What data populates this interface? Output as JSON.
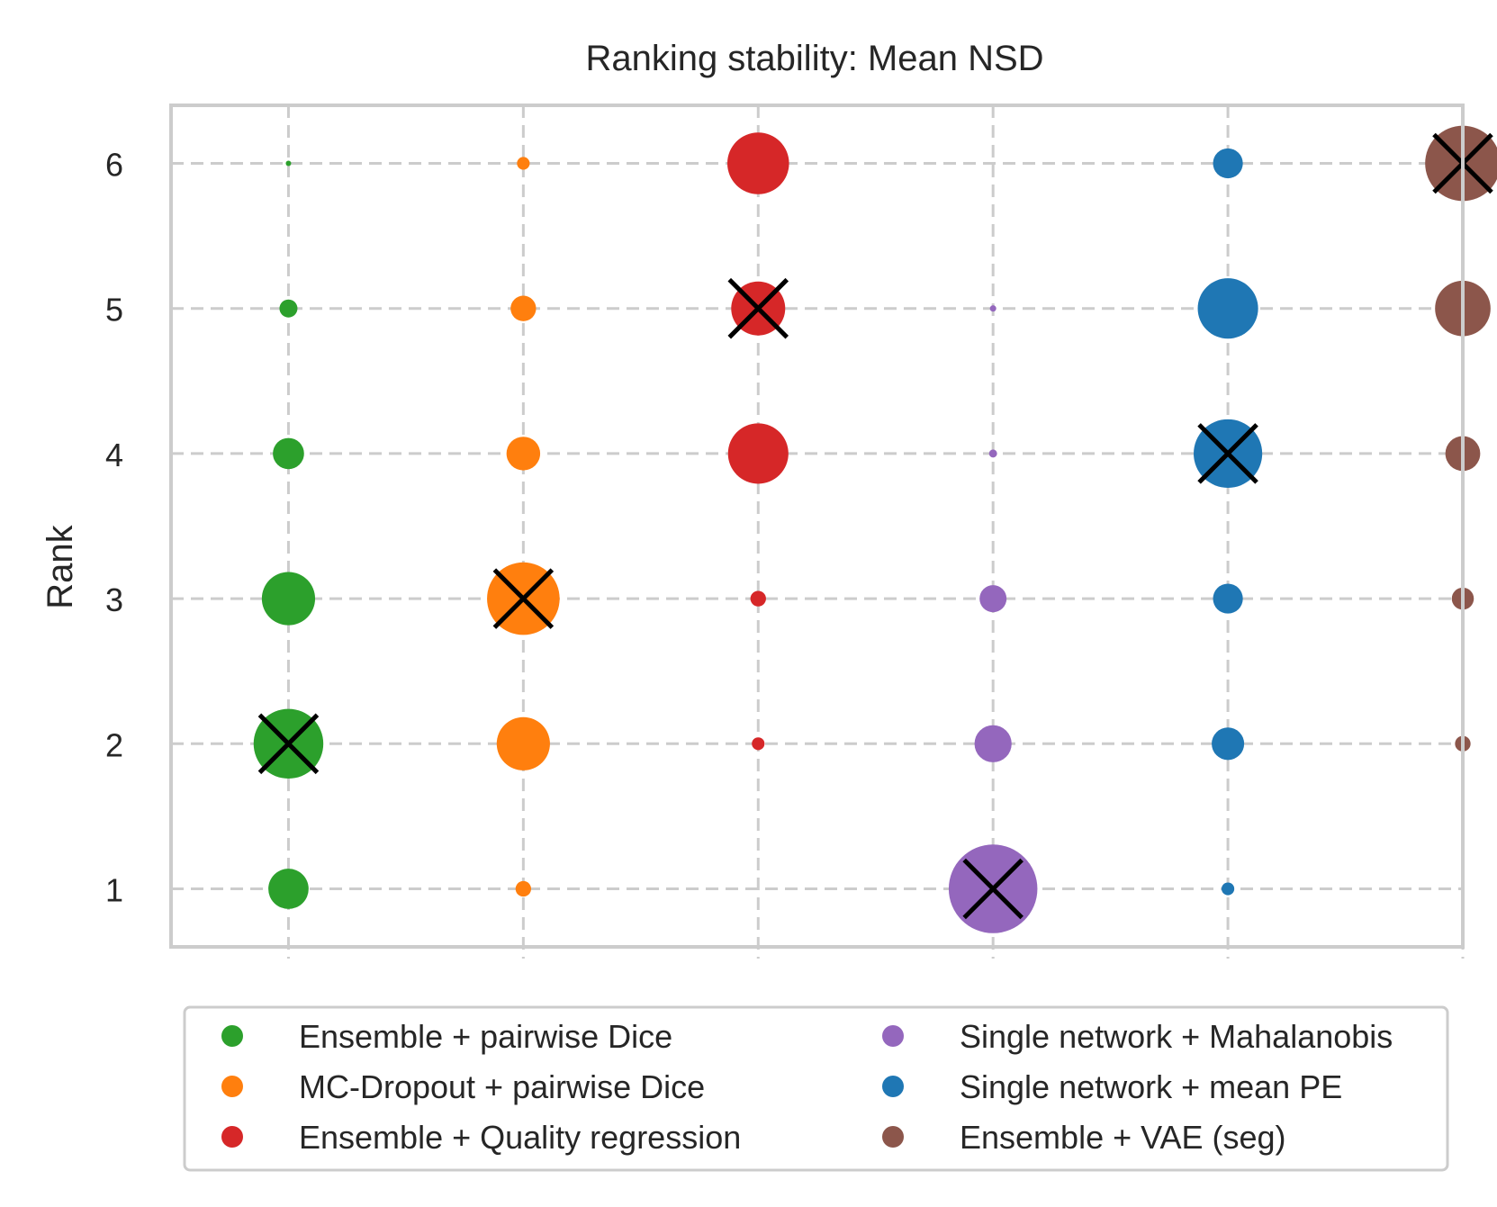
{
  "chart_data": {
    "type": "scatter",
    "title": "Ranking stability: Mean NSD",
    "xlabel": "",
    "ylabel": "Rank",
    "yticks": [
      "1",
      "2",
      "3",
      "4",
      "5",
      "6"
    ],
    "ylim": [
      0.6,
      6.4
    ],
    "xlim": [
      0.5,
      6.0
    ],
    "grid": true,
    "legend_position": "bottom",
    "size_meaning": "relative frequency of rank",
    "series": [
      {
        "name": "Ensemble + pairwise Dice",
        "color": "#2ca02c",
        "x": 1,
        "points": [
          {
            "rank": 1,
            "size": 0.2
          },
          {
            "rank": 2,
            "size": 0.6
          },
          {
            "rank": 3,
            "size": 0.35
          },
          {
            "rank": 4,
            "size": 0.12
          },
          {
            "rank": 5,
            "size": 0.04
          },
          {
            "rank": 6,
            "size": 0.003
          }
        ],
        "marked_rank": 2
      },
      {
        "name": "MC-Dropout + pairwise Dice",
        "color": "#ff7f0e",
        "x": 2,
        "points": [
          {
            "rank": 1,
            "size": 0.03
          },
          {
            "rank": 2,
            "size": 0.35
          },
          {
            "rank": 3,
            "size": 0.65
          },
          {
            "rank": 4,
            "size": 0.14
          },
          {
            "rank": 5,
            "size": 0.08
          },
          {
            "rank": 6,
            "size": 0.02
          }
        ],
        "marked_rank": 3
      },
      {
        "name": "Ensemble + Quality regression",
        "color": "#d62728",
        "x": 3,
        "points": [
          {
            "rank": 2,
            "size": 0.02
          },
          {
            "rank": 3,
            "size": 0.03
          },
          {
            "rank": 4,
            "size": 0.45
          },
          {
            "rank": 5,
            "size": 0.36
          },
          {
            "rank": 6,
            "size": 0.47
          }
        ],
        "marked_rank": 5
      },
      {
        "name": "Single network + Mahalanobis",
        "color": "#9467bd",
        "x": 4,
        "points": [
          {
            "rank": 1,
            "size": 0.97
          },
          {
            "rank": 2,
            "size": 0.17
          },
          {
            "rank": 3,
            "size": 0.09
          },
          {
            "rank": 4,
            "size": 0.008
          },
          {
            "rank": 5,
            "size": 0.005
          }
        ],
        "marked_rank": 1
      },
      {
        "name": "Single network + mean PE",
        "color": "#1f77b4",
        "x": 5,
        "points": [
          {
            "rank": 1,
            "size": 0.02
          },
          {
            "rank": 2,
            "size": 0.13
          },
          {
            "rank": 3,
            "size": 0.11
          },
          {
            "rank": 4,
            "size": 0.58
          },
          {
            "rank": 5,
            "size": 0.45
          },
          {
            "rank": 6,
            "size": 0.11
          }
        ],
        "marked_rank": 4
      },
      {
        "name": "Ensemble + VAE (seg)",
        "color": "#8c564b",
        "x": 6,
        "points": [
          {
            "rank": 2,
            "size": 0.03
          },
          {
            "rank": 3,
            "size": 0.06
          },
          {
            "rank": 4,
            "size": 0.15
          },
          {
            "rank": 5,
            "size": 0.38
          },
          {
            "rank": 6,
            "size": 0.7
          }
        ],
        "marked_rank": 6
      }
    ]
  }
}
